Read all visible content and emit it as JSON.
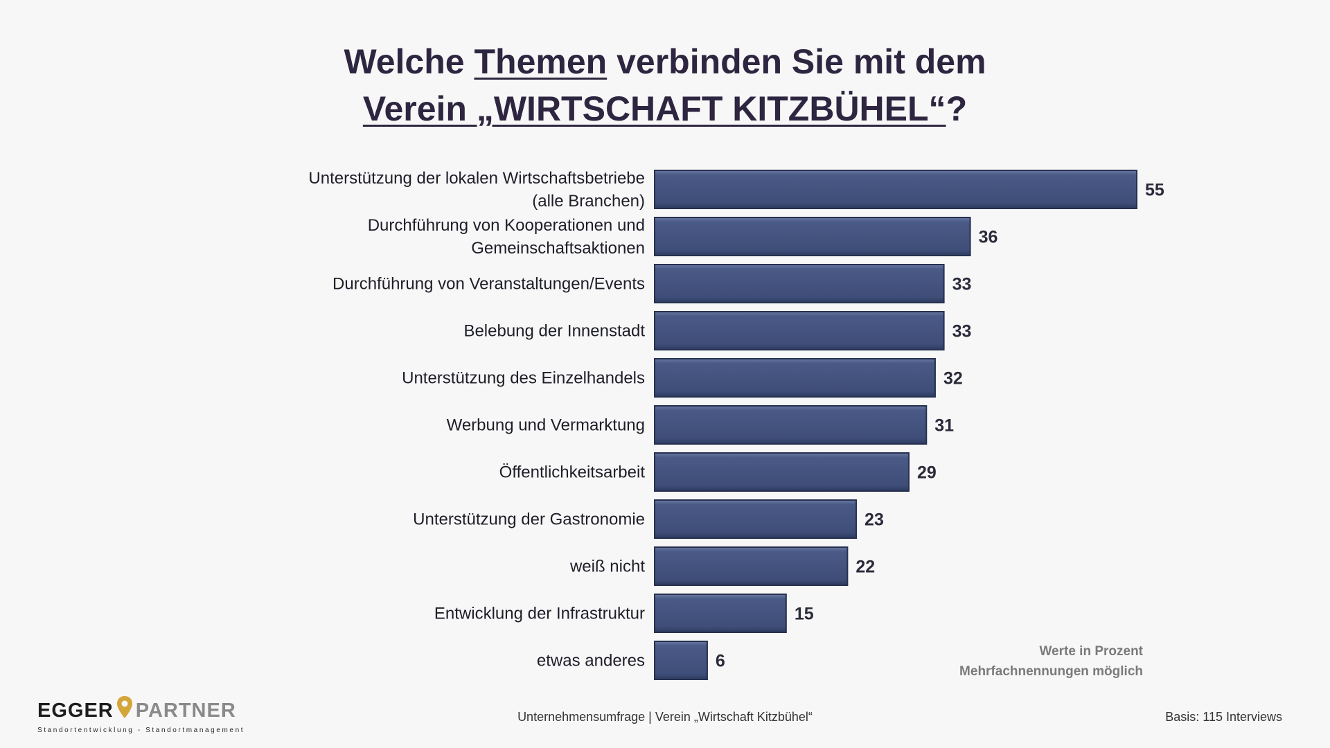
{
  "title": {
    "line1_pre": "Welche ",
    "line1_underlined": "Themen",
    "line1_post": " verbinden Sie mit dem",
    "line2_underlined": "Verein „WIRTSCHAFT KITZBÜHEL“",
    "line2_post": "?"
  },
  "chart_data": {
    "type": "bar",
    "orientation": "horizontal",
    "categories": [
      [
        "Unterstützung der lokalen Wirtschaftsbetriebe",
        "(alle Branchen)"
      ],
      [
        "Durchführung von Kooperationen und",
        "Gemeinschaftsaktionen"
      ],
      [
        "Durchführung von Veranstaltungen/Events"
      ],
      [
        "Belebung der Innenstadt"
      ],
      [
        "Unterstützung des Einzelhandels"
      ],
      [
        "Werbung und Vermarktung"
      ],
      [
        "Öffentlichkeitsarbeit"
      ],
      [
        "Unterstützung der Gastronomie"
      ],
      [
        "weiß nicht"
      ],
      [
        "Entwicklung der Infrastruktur"
      ],
      [
        "etwas anderes"
      ]
    ],
    "values": [
      55,
      36,
      33,
      33,
      32,
      31,
      29,
      23,
      22,
      15,
      6
    ],
    "bar_color": "#44537c",
    "xlim": [
      0,
      55
    ]
  },
  "notes": {
    "line1": "Werte in Prozent",
    "line2": "Mehrfachnennungen möglich"
  },
  "logo": {
    "part1": "EGGER",
    "part2": "PARTNER",
    "tagline": "Standortentwicklung - Standortmanagement",
    "pin_color": "#d4a63a"
  },
  "footer": {
    "center": "Unternehmensumfrage | Verein „Wirtschaft Kitzbühel“",
    "right": "Basis: 115 Interviews"
  }
}
